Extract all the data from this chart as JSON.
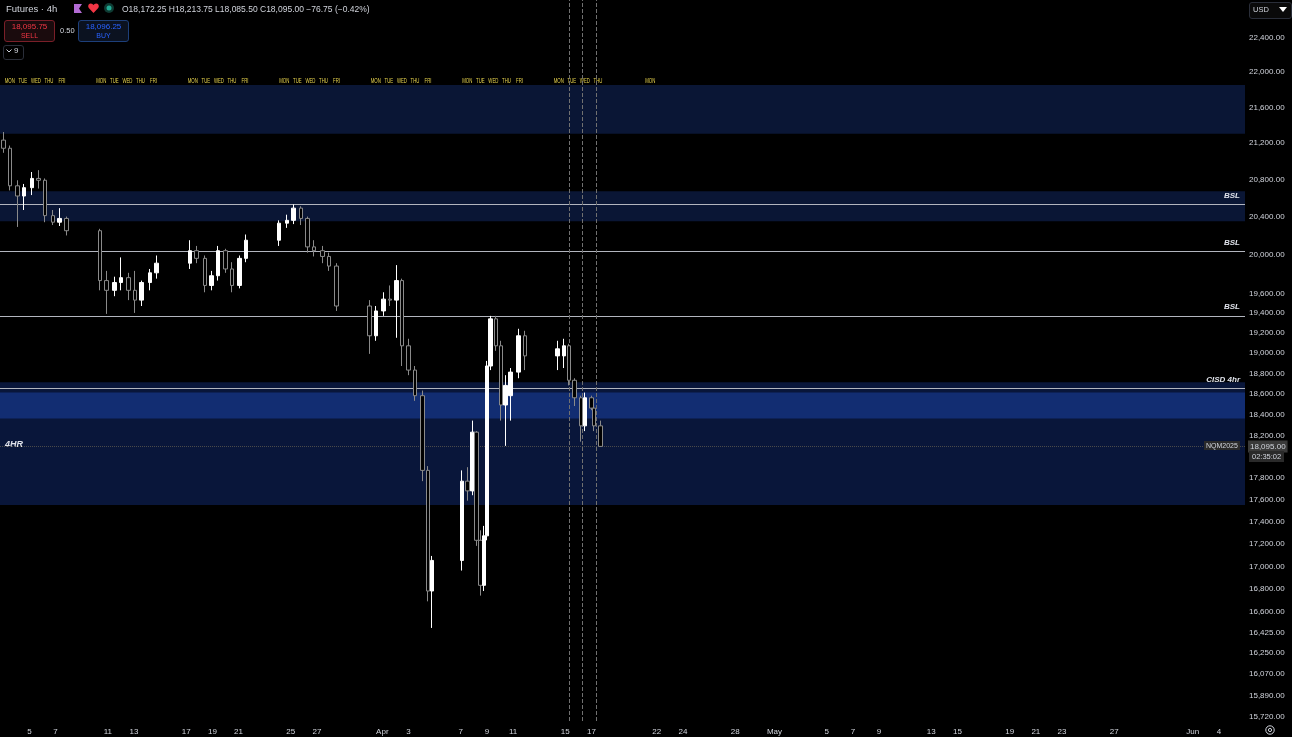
{
  "chart_data": {
    "type": "candlestick",
    "title": "Futures · 4h",
    "subtitle": "O18,172.25 H18,213.75 L18,085.50 C18,095.00 −76.75 (−0.42%)",
    "x": [
      "2025-03-03T00:00",
      "2025-03-03T12:00",
      "2025-03-04T02:00",
      "2025-03-04T14:00",
      "2025-03-05T05:00",
      "2025-03-05T17:00",
      "2025-03-06T05:00",
      "2025-03-06T19:00",
      "2025-03-07T07:00",
      "2025-03-07T20:00",
      "2025-03-10T10:00",
      "2025-03-10T22:00",
      "2025-03-11T12:00",
      "2025-03-12T00:00",
      "2025-03-12T14:00",
      "2025-03-13T02:00",
      "2025-03-13T14:00",
      "2025-03-14T05:00",
      "2025-03-14T17:00",
      "2025-03-17T07:00",
      "2025-03-17T19:00",
      "2025-03-18T10:00",
      "2025-03-18T22:00",
      "2025-03-19T10:00",
      "2025-03-20T00:00",
      "2025-03-20T12:00",
      "2025-03-21T02:00",
      "2025-03-21T14:00",
      "2025-03-24T02:00",
      "2025-03-24T17:00",
      "2025-03-25T05:00",
      "2025-03-25T19:00",
      "2025-03-26T07:00",
      "2025-03-26T19:00",
      "2025-03-27T10:00",
      "2025-03-27T22:00",
      "2025-03-28T12:00",
      "2025-03-31T00:00",
      "2025-03-31T12:00",
      "2025-04-01T02:00",
      "2025-04-01T14:00",
      "2025-04-02T02:00",
      "2025-04-02T12:00",
      "2025-04-03T00:00",
      "2025-04-03T12:00",
      "2025-04-04T02:00",
      "2025-04-04T12:00",
      "2025-04-04T19:00",
      "2025-04-07T02:00",
      "2025-04-07T12:00",
      "2025-04-07T22:00",
      "2025-04-08T05:00",
      "2025-04-08T12:00",
      "2025-04-08T19:00",
      "2025-04-09T00:00",
      "2025-04-09T07:00",
      "2025-04-09T17:00",
      "2025-04-10T02:00",
      "2025-04-10T10:00",
      "2025-04-10T19:00",
      "2025-04-11T10:00",
      "2025-04-11T22:00",
      "2025-04-14T10:00",
      "2025-04-14T22:00",
      "2025-04-15T07:00",
      "2025-04-15T17:00",
      "2025-04-16T05:00",
      "2025-04-16T12:00",
      "2025-04-17T00:00",
      "2025-04-17T05:00",
      "2025-04-17T17:00"
    ],
    "ohlc": [
      [
        21230,
        21320,
        21090,
        21140
      ],
      [
        21140,
        21170,
        20680,
        20730
      ],
      [
        20730,
        20790,
        20290,
        20620
      ],
      [
        20620,
        20750,
        20470,
        20710
      ],
      [
        20710,
        20880,
        20630,
        20810
      ],
      [
        20810,
        20900,
        20700,
        20790
      ],
      [
        20790,
        20810,
        20340,
        20410
      ],
      [
        20410,
        20470,
        20310,
        20340
      ],
      [
        20340,
        20490,
        20300,
        20380
      ],
      [
        20380,
        20400,
        20200,
        20250
      ],
      [
        20250,
        20270,
        19630,
        19730
      ],
      [
        19730,
        19830,
        19390,
        19630
      ],
      [
        19630,
        19770,
        19570,
        19710
      ],
      [
        19710,
        19970,
        19630,
        19760
      ],
      [
        19760,
        19810,
        19530,
        19630
      ],
      [
        19630,
        19830,
        19400,
        19530
      ],
      [
        19530,
        19730,
        19470,
        19710
      ],
      [
        19710,
        19850,
        19630,
        19810
      ],
      [
        19810,
        19990,
        19750,
        19910
      ],
      [
        19910,
        20150,
        19850,
        20040
      ],
      [
        20040,
        20090,
        19910,
        19960
      ],
      [
        19960,
        19990,
        19610,
        19680
      ],
      [
        19680,
        19830,
        19630,
        19780
      ],
      [
        19780,
        20090,
        19730,
        20040
      ],
      [
        20040,
        20060,
        19810,
        19850
      ],
      [
        19850,
        19920,
        19610,
        19680
      ],
      [
        19680,
        19990,
        19650,
        19960
      ],
      [
        19960,
        20210,
        19920,
        20150
      ],
      [
        20150,
        20360,
        20090,
        20330
      ],
      [
        20330,
        20420,
        20280,
        20360
      ],
      [
        20360,
        20530,
        20320,
        20490
      ],
      [
        20490,
        20510,
        20310,
        20380
      ],
      [
        20380,
        20400,
        20020,
        20080
      ],
      [
        20080,
        20150,
        19980,
        20040
      ],
      [
        20040,
        20090,
        19910,
        19980
      ],
      [
        19980,
        20020,
        19830,
        19880
      ],
      [
        19880,
        19910,
        19420,
        19470
      ],
      [
        19470,
        19530,
        18990,
        19170
      ],
      [
        19170,
        19470,
        19120,
        19420
      ],
      [
        19420,
        19610,
        19370,
        19540
      ],
      [
        19540,
        19680,
        19470,
        19530
      ],
      [
        19530,
        19890,
        19150,
        19730
      ],
      [
        19730,
        19750,
        18870,
        19070
      ],
      [
        19070,
        19140,
        18780,
        18830
      ],
      [
        18830,
        18870,
        18530,
        18580
      ],
      [
        18580,
        18630,
        17770,
        17870
      ],
      [
        17870,
        17910,
        16690,
        16780
      ],
      [
        16780,
        17090,
        16460,
        17050
      ],
      [
        17050,
        17870,
        16960,
        17770
      ],
      [
        17770,
        17900,
        17590,
        17680
      ],
      [
        17680,
        18340,
        17640,
        18230
      ],
      [
        18230,
        18240,
        17180,
        17230
      ],
      [
        17230,
        17320,
        16740,
        16830
      ],
      [
        16830,
        17360,
        16780,
        17270
      ],
      [
        17270,
        18920,
        17230,
        18870
      ],
      [
        18870,
        19370,
        18830,
        19340
      ],
      [
        19340,
        19370,
        19020,
        19070
      ],
      [
        19070,
        19120,
        18340,
        18490
      ],
      [
        18490,
        18780,
        18100,
        18680
      ],
      [
        18580,
        18850,
        18340,
        18810
      ],
      [
        18810,
        19240,
        18750,
        19170
      ],
      [
        19170,
        19220,
        18830,
        18970
      ],
      [
        18970,
        19120,
        18830,
        19040
      ],
      [
        18970,
        19140,
        18850,
        19070
      ],
      [
        19070,
        19090,
        18680,
        18730
      ],
      [
        18730,
        18750,
        18480,
        18560
      ],
      [
        18560,
        18580,
        18140,
        18290
      ],
      [
        18290,
        18610,
        18240,
        18560
      ],
      [
        18560,
        18580,
        18440,
        18460
      ],
      [
        18460,
        18530,
        18240,
        18290
      ],
      [
        18290,
        18340,
        18090,
        18095
      ]
    ],
    "log": "y",
    "xlim": [
      "2025-03-02T18:00",
      "2025-06-06"
    ],
    "xticks": [
      {
        "value": "2025-03-05",
        "label": "5"
      },
      {
        "value": "2025-03-07",
        "label": "7"
      },
      {
        "value": "2025-03-11",
        "label": "11"
      },
      {
        "value": "2025-03-13",
        "label": "13"
      },
      {
        "value": "2025-03-17",
        "label": "17"
      },
      {
        "value": "2025-03-19",
        "label": "19"
      },
      {
        "value": "2025-03-21",
        "label": "21"
      },
      {
        "value": "2025-03-25",
        "label": "25"
      },
      {
        "value": "2025-03-27",
        "label": "27"
      },
      {
        "value": "2025-04-01",
        "label": "Apr"
      },
      {
        "value": "2025-04-03",
        "label": "3"
      },
      {
        "value": "2025-04-07",
        "label": "7"
      },
      {
        "value": "2025-04-09",
        "label": "9"
      },
      {
        "value": "2025-04-11",
        "label": "11"
      },
      {
        "value": "2025-04-15",
        "label": "15"
      },
      {
        "value": "2025-04-17",
        "label": "17"
      },
      {
        "value": "2025-04-22",
        "label": "22"
      },
      {
        "value": "2025-04-24",
        "label": "24"
      },
      {
        "value": "2025-04-28",
        "label": "28"
      },
      {
        "value": "2025-05-01",
        "label": "May"
      },
      {
        "value": "2025-05-05",
        "label": "5"
      },
      {
        "value": "2025-05-07",
        "label": "7"
      },
      {
        "value": "2025-05-09",
        "label": "9"
      },
      {
        "value": "2025-05-13",
        "label": "13"
      },
      {
        "value": "2025-05-15",
        "label": "15"
      },
      {
        "value": "2025-05-19",
        "label": "19"
      },
      {
        "value": "2025-05-21",
        "label": "21"
      },
      {
        "value": "2025-05-23",
        "label": "23"
      },
      {
        "value": "2025-05-27",
        "label": "27"
      },
      {
        "value": "2025-06-02",
        "label": "Jun"
      },
      {
        "value": "2025-06-04",
        "label": "4"
      }
    ],
    "ylim": [
      15680,
      22840
    ],
    "yticks": [
      {
        "value": 22400,
        "label": "22,400.00"
      },
      {
        "value": 22000,
        "label": "22,000.00"
      },
      {
        "value": 21600,
        "label": "21,600.00"
      },
      {
        "value": 21200,
        "label": "21,200.00"
      },
      {
        "value": 20800,
        "label": "20,800.00"
      },
      {
        "value": 20400,
        "label": "20,400.00"
      },
      {
        "value": 20000,
        "label": "20,000.00"
      },
      {
        "value": 19600,
        "label": "19,600.00"
      },
      {
        "value": 19400,
        "label": "19,400.00"
      },
      {
        "value": 19200,
        "label": "19,200.00"
      },
      {
        "value": 19000,
        "label": "19,000.00"
      },
      {
        "value": 18800,
        "label": "18,800.00"
      },
      {
        "value": 18600,
        "label": "18,600.00"
      },
      {
        "value": 18400,
        "label": "18,400.00"
      },
      {
        "value": 18200,
        "label": "18,200.00"
      },
      {
        "value": 17800,
        "label": "17,800.00"
      },
      {
        "value": 17600,
        "label": "17,600.00"
      },
      {
        "value": 17400,
        "label": "17,400.00"
      },
      {
        "value": 17200,
        "label": "17,200.00"
      },
      {
        "value": 17000,
        "label": "17,000.00"
      },
      {
        "value": 16800,
        "label": "16,800.00"
      },
      {
        "value": 16600,
        "label": "16,600.00"
      },
      {
        "value": 16425,
        "label": "16,425.00"
      },
      {
        "value": 16250,
        "label": "16,250.00"
      },
      {
        "value": 16070,
        "label": "16,070.00"
      },
      {
        "value": 15890,
        "label": "15,890.00"
      },
      {
        "value": 15720,
        "label": "15,720.00"
      }
    ],
    "bands": [
      {
        "axis": "y",
        "from": 21300,
        "to": 21850,
        "color": "#0c1a3e"
      },
      {
        "axis": "y",
        "from": 20350,
        "to": 20670,
        "color": "#0c1a3e"
      },
      {
        "axis": "y",
        "from": 17550,
        "to": 18710,
        "color": "#0b1a44",
        "label": "4HR"
      },
      {
        "axis": "y",
        "from": 18360,
        "to": 18610,
        "color": "#14317c"
      }
    ],
    "ref_lines": [
      {
        "axis": "y",
        "value": 20530,
        "label": "BSL",
        "color": "#b2b5be",
        "line_style": "solid"
      },
      {
        "axis": "y",
        "value": 20030,
        "label": "BSL",
        "color": "#b2b5be",
        "line_style": "solid"
      },
      {
        "axis": "y",
        "value": 19370,
        "label": "BSL",
        "color": "#b2b5be",
        "line_style": "solid"
      },
      {
        "axis": "y",
        "value": 18650,
        "label": "CISD 4hr",
        "color": "#b2b5be",
        "line_style": "solid"
      },
      {
        "axis": "y",
        "value": 18095,
        "label": "18,095.00",
        "color": "#4a4a4a",
        "line_style": "dotted"
      },
      {
        "axis": "x",
        "value": "2025-04-15T08:00",
        "color": "#707070",
        "line_style": "dashed"
      },
      {
        "axis": "x",
        "value": "2025-04-16T07:00",
        "color": "#707070",
        "line_style": "dashed"
      },
      {
        "axis": "x",
        "value": "2025-04-17T08:00",
        "color": "#707070",
        "line_style": "dashed"
      }
    ],
    "annotations": [
      "18,095.75",
      "SELL",
      "0.50",
      "18,096.25",
      "BUY",
      "9",
      "USD",
      "NQM2025",
      "02:35:02",
      {
        "text": "MON",
        "x": "2025-03-03T12:00",
        "y": 21900
      },
      {
        "text": "TUE",
        "x": "2025-03-04T12:00",
        "y": 21900
      },
      {
        "text": "WED",
        "x": "2025-03-05T12:00",
        "y": 21900
      },
      {
        "text": "THU",
        "x": "2025-03-06T12:00",
        "y": 21900
      },
      {
        "text": "FRI",
        "x": "2025-03-07T12:00",
        "y": 21900
      },
      {
        "text": "MON",
        "x": "2025-03-10T12:00",
        "y": 21900
      },
      {
        "text": "TUE",
        "x": "2025-03-11T12:00",
        "y": 21900
      },
      {
        "text": "WED",
        "x": "2025-03-12T12:00",
        "y": 21900
      },
      {
        "text": "THU",
        "x": "2025-03-13T12:00",
        "y": 21900
      },
      {
        "text": "FRI",
        "x": "2025-03-14T12:00",
        "y": 21900
      },
      {
        "text": "MON",
        "x": "2025-03-17T12:00",
        "y": 21900
      },
      {
        "text": "TUE",
        "x": "2025-03-18T12:00",
        "y": 21900
      },
      {
        "text": "WED",
        "x": "2025-03-19T12:00",
        "y": 21900
      },
      {
        "text": "THU",
        "x": "2025-03-20T12:00",
        "y": 21900
      },
      {
        "text": "FRI",
        "x": "2025-03-21T12:00",
        "y": 21900
      },
      {
        "text": "MON",
        "x": "2025-03-24T12:00",
        "y": 21900
      },
      {
        "text": "TUE",
        "x": "2025-03-25T12:00",
        "y": 21900
      },
      {
        "text": "WED",
        "x": "2025-03-26T12:00",
        "y": 21900
      },
      {
        "text": "THU",
        "x": "2025-03-27T12:00",
        "y": 21900
      },
      {
        "text": "FRI",
        "x": "2025-03-28T12:00",
        "y": 21900
      },
      {
        "text": "MON",
        "x": "2025-03-31T12:00",
        "y": 21900
      },
      {
        "text": "TUE",
        "x": "2025-04-01T12:00",
        "y": 21900
      },
      {
        "text": "WED",
        "x": "2025-04-02T12:00",
        "y": 21900
      },
      {
        "text": "THU",
        "x": "2025-04-03T12:00",
        "y": 21900
      },
      {
        "text": "FRI",
        "x": "2025-04-04T12:00",
        "y": 21900
      },
      {
        "text": "MON",
        "x": "2025-04-07T12:00",
        "y": 21900
      },
      {
        "text": "TUE",
        "x": "2025-04-08T12:00",
        "y": 21900
      },
      {
        "text": "WED",
        "x": "2025-04-09T12:00",
        "y": 21900
      },
      {
        "text": "THU",
        "x": "2025-04-10T12:00",
        "y": 21900
      },
      {
        "text": "FRI",
        "x": "2025-04-11T12:00",
        "y": 21900
      },
      {
        "text": "MON",
        "x": "2025-04-14T12:00",
        "y": 21900
      },
      {
        "text": "TUE",
        "x": "2025-04-15T12:00",
        "y": 21900
      },
      {
        "text": "WED",
        "x": "2025-04-16T12:00",
        "y": 21900
      },
      {
        "text": "THU",
        "x": "2025-04-17T12:00",
        "y": 21900
      },
      {
        "text": "MON",
        "x": "2025-04-21T12:00",
        "y": 21900
      }
    ],
    "grid": false
  }
}
